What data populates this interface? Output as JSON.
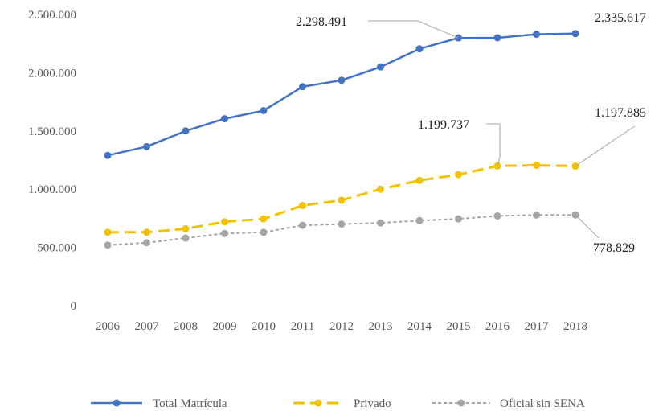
{
  "chart_data": {
    "type": "line",
    "title": "",
    "xlabel": "",
    "ylabel": "",
    "ylim": [
      0,
      2500000
    ],
    "yticks": [
      0,
      500000,
      1000000,
      1500000,
      2000000,
      2500000
    ],
    "ytick_labels": [
      "0",
      "500.000",
      "1.000.000",
      "1.500.000",
      "2.000.000",
      "2.500.000"
    ],
    "categories": [
      "2006",
      "2007",
      "2008",
      "2009",
      "2010",
      "2011",
      "2012",
      "2013",
      "2014",
      "2015",
      "2016",
      "2017",
      "2018"
    ],
    "grid": false,
    "legend_position": "bottom",
    "series": [
      {
        "name": "Total Matrícula",
        "color": "#4472C4",
        "line_style": "solid",
        "values": [
          1290000,
          1365000,
          1500000,
          1605000,
          1675000,
          1880000,
          1935000,
          2050000,
          2205000,
          2298491,
          2300000,
          2330000,
          2335617
        ]
      },
      {
        "name": "Privado",
        "color": "#F2C200",
        "line_style": "dashed",
        "values": [
          630000,
          630000,
          660000,
          720000,
          745000,
          860000,
          905000,
          1000000,
          1075000,
          1125000,
          1199737,
          1205000,
          1197885
        ]
      },
      {
        "name": "Oficial sin SENA",
        "color": "#A5A5A5",
        "line_style": "dotted",
        "values": [
          520000,
          540000,
          580000,
          620000,
          630000,
          690000,
          700000,
          710000,
          730000,
          745000,
          770000,
          778000,
          778829
        ]
      }
    ],
    "annotations": [
      {
        "text": "2.298.491",
        "series": 0,
        "index": 9
      },
      {
        "text": "2.335.617",
        "series": 0,
        "index": 12
      },
      {
        "text": "1.199.737",
        "series": 1,
        "index": 10
      },
      {
        "text": "1.197.885",
        "series": 1,
        "index": 12
      },
      {
        "text": "778.829",
        "series": 2,
        "index": 12
      }
    ]
  }
}
